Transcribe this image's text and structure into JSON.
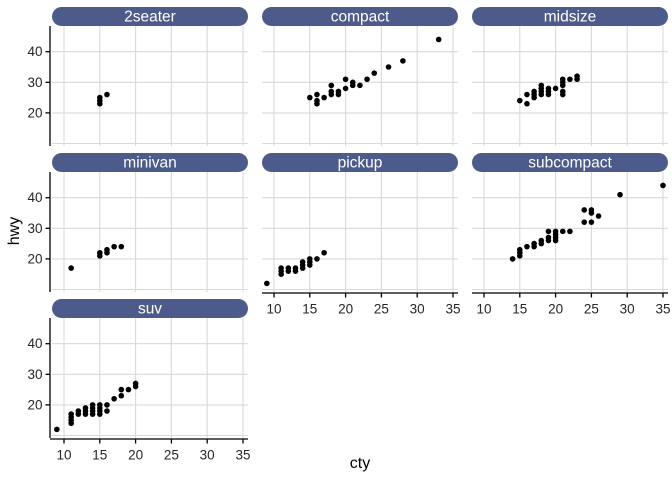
{
  "page": {
    "background": "#ffffff"
  },
  "chart_data": {
    "type": "scatter",
    "title": "",
    "facet_variable": "class",
    "xlabel": "cty",
    "ylabel": "hwy",
    "x_ticks": [
      10,
      15,
      20,
      25,
      30,
      35
    ],
    "y_tick_labels": [
      40,
      30,
      20
    ],
    "y_gridlines": [
      10,
      20,
      30,
      40
    ],
    "xlim": [
      8.3,
      35.7
    ],
    "ylim": [
      9.2,
      48.4
    ],
    "grid": "major-only",
    "legend": "none",
    "style": {
      "strip_fill": "#4c5b8a",
      "strip_text_color": "#ffffff",
      "grid_color": "#d9d9d9",
      "axis_color": "#000000",
      "tick_label_color": "#262626",
      "point_color": "#000000",
      "panel_background": "#ffffff"
    },
    "facets": [
      {
        "label": "2seater",
        "points": [
          [
            15,
            23
          ],
          [
            15,
            24
          ],
          [
            15,
            25
          ],
          [
            16,
            26
          ]
        ]
      },
      {
        "label": "compact",
        "points": [
          [
            15,
            25
          ],
          [
            16,
            23
          ],
          [
            16,
            24
          ],
          [
            16,
            26
          ],
          [
            17,
            25
          ],
          [
            18,
            26
          ],
          [
            18,
            27
          ],
          [
            18,
            29
          ],
          [
            19,
            26
          ],
          [
            19,
            27
          ],
          [
            20,
            28
          ],
          [
            20,
            31
          ],
          [
            21,
            29
          ],
          [
            21,
            30
          ],
          [
            22,
            29
          ],
          [
            23,
            31
          ],
          [
            24,
            33
          ],
          [
            26,
            35
          ],
          [
            28,
            37
          ],
          [
            33,
            44
          ]
        ]
      },
      {
        "label": "midsize",
        "points": [
          [
            15,
            24
          ],
          [
            16,
            23
          ],
          [
            16,
            26
          ],
          [
            17,
            25
          ],
          [
            17,
            26
          ],
          [
            17,
            27
          ],
          [
            18,
            26
          ],
          [
            18,
            27
          ],
          [
            18,
            28
          ],
          [
            18,
            29
          ],
          [
            19,
            26
          ],
          [
            19,
            27
          ],
          [
            19,
            28
          ],
          [
            20,
            28
          ],
          [
            21,
            26
          ],
          [
            21,
            27
          ],
          [
            21,
            29
          ],
          [
            21,
            30
          ],
          [
            21,
            31
          ],
          [
            22,
            31
          ],
          [
            23,
            31
          ],
          [
            23,
            32
          ]
        ]
      },
      {
        "label": "minivan",
        "points": [
          [
            11,
            17
          ],
          [
            15,
            21
          ],
          [
            15,
            22
          ],
          [
            16,
            22
          ],
          [
            16,
            23
          ],
          [
            17,
            24
          ],
          [
            18,
            24
          ]
        ]
      },
      {
        "label": "pickup",
        "points": [
          [
            9,
            12
          ],
          [
            11,
            15
          ],
          [
            11,
            16
          ],
          [
            11,
            17
          ],
          [
            12,
            16
          ],
          [
            12,
            17
          ],
          [
            13,
            16
          ],
          [
            13,
            17
          ],
          [
            14,
            17
          ],
          [
            14,
            18
          ],
          [
            14,
            19
          ],
          [
            15,
            18
          ],
          [
            15,
            19
          ],
          [
            15,
            20
          ],
          [
            16,
            20
          ],
          [
            17,
            22
          ]
        ]
      },
      {
        "label": "subcompact",
        "points": [
          [
            14,
            20
          ],
          [
            15,
            21
          ],
          [
            15,
            22
          ],
          [
            15,
            23
          ],
          [
            16,
            24
          ],
          [
            17,
            24
          ],
          [
            17,
            25
          ],
          [
            18,
            25
          ],
          [
            18,
            26
          ],
          [
            19,
            26
          ],
          [
            19,
            27
          ],
          [
            19,
            29
          ],
          [
            20,
            26
          ],
          [
            20,
            27
          ],
          [
            20,
            28
          ],
          [
            20,
            29
          ],
          [
            21,
            29
          ],
          [
            22,
            29
          ],
          [
            24,
            32
          ],
          [
            25,
            32
          ],
          [
            24,
            36
          ],
          [
            25,
            36
          ],
          [
            25,
            35
          ],
          [
            26,
            34
          ],
          [
            29,
            41
          ],
          [
            35,
            44
          ]
        ]
      },
      {
        "label": "suv",
        "points": [
          [
            9,
            12
          ],
          [
            11,
            14
          ],
          [
            11,
            15
          ],
          [
            11,
            16
          ],
          [
            11,
            17
          ],
          [
            12,
            17
          ],
          [
            12,
            18
          ],
          [
            13,
            17
          ],
          [
            13,
            18
          ],
          [
            13,
            19
          ],
          [
            14,
            17
          ],
          [
            14,
            18
          ],
          [
            14,
            19
          ],
          [
            14,
            20
          ],
          [
            15,
            17
          ],
          [
            15,
            18
          ],
          [
            15,
            19
          ],
          [
            15,
            20
          ],
          [
            16,
            18
          ],
          [
            16,
            20
          ],
          [
            17,
            22
          ],
          [
            18,
            23
          ],
          [
            18,
            25
          ],
          [
            19,
            25
          ],
          [
            20,
            26
          ],
          [
            20,
            27
          ]
        ]
      }
    ]
  }
}
